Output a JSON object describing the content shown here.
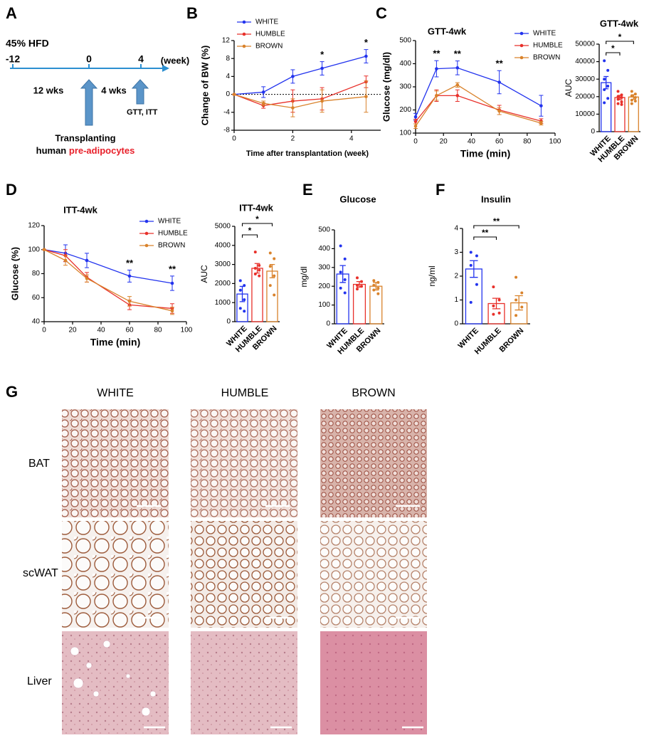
{
  "diagram": {
    "panel_label": "A",
    "diet": "45% HFD",
    "timeline": {
      "ticks": [
        "-12",
        "0",
        "4"
      ],
      "unit": "(week)"
    },
    "periods": [
      "12 wks",
      "4 wks"
    ],
    "event": "GTT, ITT",
    "transplant": [
      "Transplanting",
      "human",
      "pre-adipocytes"
    ]
  },
  "chart_data": [
    {
      "type": "line",
      "panel_label": "B",
      "x_label": "Time after transplantation (week)",
      "y_label": "Change of BW (%)",
      "x": [
        0,
        1,
        2,
        3,
        4.5
      ],
      "xlim": [
        0,
        5
      ],
      "xticks": [
        0,
        2,
        4
      ],
      "ylim": [
        -8,
        12
      ],
      "yticks": [
        -8,
        -4,
        0,
        4,
        8,
        12
      ],
      "hline": 0,
      "series": [
        {
          "name": "WHITE",
          "color": "#2233ee",
          "values": [
            0,
            0.5,
            4,
            5.8,
            8.5
          ],
          "errors": [
            0,
            1.2,
            1.5,
            1.5,
            1.5
          ]
        },
        {
          "name": "HUMBLE",
          "color": "#e8302a",
          "values": [
            0,
            -2.5,
            -1.5,
            -1,
            2.8
          ],
          "errors": [
            0,
            0.6,
            2.5,
            2.5,
            1.3
          ]
        },
        {
          "name": "BROWN",
          "color": "#d9822b",
          "values": [
            0,
            -2,
            -3,
            -1.5,
            -0.5
          ],
          "errors": [
            0,
            0.5,
            2,
            2.5,
            3.5
          ]
        }
      ],
      "significance": [
        null,
        null,
        null,
        "*",
        "*"
      ]
    },
    {
      "type": "line",
      "panel_label": "C",
      "title": "GTT-4wk",
      "x_label": "Time (min)",
      "y_label": "Glucose (mg/dl)",
      "x": [
        0,
        15,
        30,
        60,
        90
      ],
      "xlim": [
        0,
        100
      ],
      "xticks": [
        0,
        20,
        40,
        60,
        80,
        100
      ],
      "ylim": [
        100,
        500
      ],
      "yticks": [
        100,
        200,
        300,
        400,
        500
      ],
      "series": [
        {
          "name": "WHITE",
          "color": "#2233ee",
          "values": [
            170,
            378,
            382,
            320,
            218
          ],
          "errors": [
            15,
            35,
            30,
            50,
            45
          ]
        },
        {
          "name": "HUMBLE",
          "color": "#e8302a",
          "values": [
            150,
            262,
            262,
            200,
            152
          ],
          "errors": [
            10,
            25,
            25,
            20,
            10
          ]
        },
        {
          "name": "BROWN",
          "color": "#d9822b",
          "values": [
            130,
            262,
            308,
            195,
            143
          ],
          "errors": [
            10,
            20,
            10,
            15,
            8
          ]
        }
      ],
      "significance": [
        null,
        "**",
        "**",
        "**",
        null
      ]
    },
    {
      "type": "bar",
      "title": "GTT-4wk",
      "y_label": "AUC",
      "categories": [
        "WHITE",
        "HUMBLE",
        "BROWN"
      ],
      "colors": [
        "#2233ee",
        "#e8302a",
        "#d9822b"
      ],
      "values": [
        28000,
        19500,
        19800
      ],
      "errors": [
        3500,
        1200,
        1300
      ],
      "points": [
        [
          40500,
          35000,
          30000,
          26000,
          24000,
          19000,
          16500
        ],
        [
          23000,
          21000,
          20000,
          19500,
          18500,
          17000,
          16000,
          15500
        ],
        [
          23000,
          21500,
          20500,
          19500,
          18000,
          17500,
          16000
        ]
      ],
      "ylim": [
        0,
        50000
      ],
      "yticks": [
        0,
        10000,
        20000,
        30000,
        40000,
        50000
      ],
      "comparisons": [
        {
          "label": "*",
          "from": 0,
          "to": 1
        },
        {
          "label": "*",
          "from": 0,
          "to": 2
        }
      ]
    },
    {
      "type": "line",
      "panel_label": "D",
      "title": "ITT-4wk",
      "x_label": "Time (min)",
      "y_label": "Glucose (%)",
      "x": [
        0,
        15,
        30,
        60,
        90
      ],
      "xlim": [
        0,
        100
      ],
      "xticks": [
        0,
        20,
        40,
        60,
        80,
        100
      ],
      "ylim": [
        40,
        120
      ],
      "yticks": [
        40,
        60,
        80,
        100,
        120
      ],
      "series": [
        {
          "name": "WHITE",
          "color": "#2233ee",
          "values": [
            100,
            97,
            91,
            78,
            72
          ],
          "errors": [
            0,
            7,
            6,
            5,
            6
          ]
        },
        {
          "name": "HUMBLE",
          "color": "#e8302a",
          "values": [
            100,
            95,
            77,
            54,
            51
          ],
          "errors": [
            0,
            5,
            4,
            4,
            4
          ]
        },
        {
          "name": "BROWN",
          "color": "#d9822b",
          "values": [
            100,
            91,
            76,
            57,
            49
          ],
          "errors": [
            0,
            4,
            3,
            4,
            3
          ]
        }
      ],
      "significance": [
        null,
        null,
        null,
        "**",
        "**"
      ]
    },
    {
      "type": "bar",
      "title": "ITT-4wk",
      "y_label": "AUC",
      "categories": [
        "WHITE",
        "HUMBLE",
        "BROWN"
      ],
      "colors": [
        "#2233ee",
        "#e8302a",
        "#d9822b"
      ],
      "values": [
        1450,
        2800,
        2650
      ],
      "errors": [
        400,
        250,
        350
      ],
      "points": [
        [
          2150,
          1900,
          1650,
          1150,
          700,
          550
        ],
        [
          3650,
          2950,
          2800,
          2700,
          2500,
          2400
        ],
        [
          3600,
          3300,
          2900,
          2400,
          1900,
          1400
        ]
      ],
      "ylim": [
        0,
        5000
      ],
      "yticks": [
        0,
        1000,
        2000,
        3000,
        4000,
        5000
      ],
      "comparisons": [
        {
          "label": "*",
          "from": 0,
          "to": 1
        },
        {
          "label": "*",
          "from": 0,
          "to": 2
        }
      ]
    },
    {
      "type": "bar",
      "panel_label": "E",
      "title": "Glucose",
      "y_label": "mg/dl",
      "categories": [
        "WHITE",
        "HUMBLE",
        "BROWN"
      ],
      "colors": [
        "#2233ee",
        "#e8302a",
        "#d9822b"
      ],
      "values": [
        265,
        210,
        200
      ],
      "errors": [
        45,
        15,
        20
      ],
      "points": [
        [
          415,
          345,
          275,
          235,
          190,
          165
        ],
        [
          245,
          225,
          205,
          200,
          185
        ],
        [
          230,
          220,
          205,
          190,
          180,
          160
        ]
      ],
      "ylim": [
        0,
        500
      ],
      "yticks": [
        0,
        100,
        200,
        300,
        400,
        500
      ]
    },
    {
      "type": "bar",
      "panel_label": "F",
      "title": "Insulin",
      "y_label": "ng/ml",
      "categories": [
        "WHITE",
        "HUMBLE",
        "BROWN"
      ],
      "colors": [
        "#2233ee",
        "#e8302a",
        "#d9822b"
      ],
      "values": [
        2.3,
        0.85,
        0.88
      ],
      "errors": [
        0.35,
        0.22,
        0.3
      ],
      "points": [
        [
          3.0,
          2.85,
          2.45,
          1.65,
          0.9
        ],
        [
          1.55,
          1.0,
          0.75,
          0.45,
          0.4
        ],
        [
          1.95,
          1.3,
          1.0,
          0.7,
          0.35
        ]
      ],
      "ylim": [
        0,
        4
      ],
      "yticks": [
        0,
        1,
        2,
        3,
        4
      ],
      "comparisons": [
        {
          "label": "**",
          "from": 0,
          "to": 1
        },
        {
          "label": "**",
          "from": 0,
          "to": 2
        }
      ]
    }
  ],
  "histology": {
    "panel_label": "G",
    "columns": [
      "WHITE",
      "HUMBLE",
      "BROWN"
    ],
    "rows": [
      "BAT",
      "scWAT",
      "Liver"
    ]
  }
}
